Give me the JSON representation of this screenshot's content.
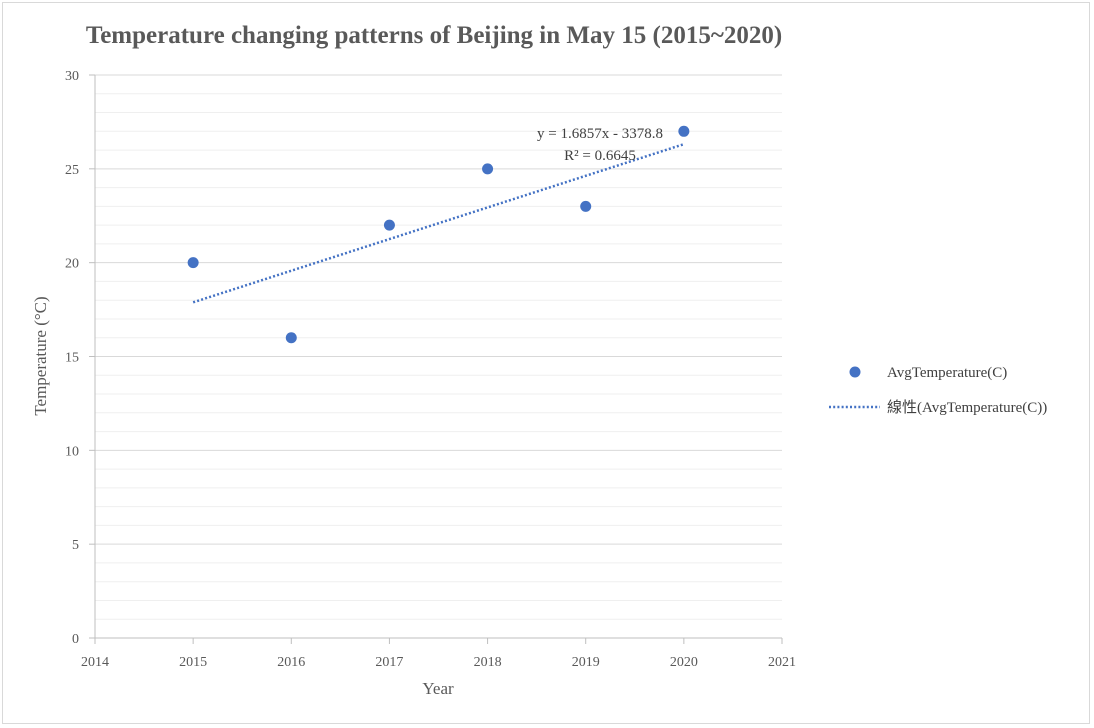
{
  "chart_data": {
    "type": "scatter",
    "title": "Temperature changing patterns of Beijing in May 15 (2015~2020)",
    "xlabel": "Year",
    "ylabel": "Temperature (°C)",
    "xlim": [
      2014,
      2021
    ],
    "ylim": [
      0,
      30
    ],
    "x_ticks": [
      2014,
      2015,
      2016,
      2017,
      2018,
      2019,
      2020,
      2021
    ],
    "y_ticks": [
      0,
      5,
      10,
      15,
      20,
      25,
      30
    ],
    "grid": true,
    "legend_position": "right",
    "series": [
      {
        "name": "AvgTemperature(C)",
        "color": "#4472c4",
        "x": [
          2015,
          2016,
          2017,
          2018,
          2019,
          2020
        ],
        "y": [
          20,
          16,
          22,
          25,
          23,
          27
        ]
      }
    ],
    "trendline": {
      "name": "線性(AvgTemperature(C))",
      "type": "linear",
      "style": "dotted",
      "color": "#4472c4",
      "slope": 1.6857,
      "intercept": -3378.8,
      "x_range": [
        2015,
        2020
      ],
      "equation_label": "y = 1.6857x - 3378.8",
      "r2_label": "R² = 0.6645"
    }
  }
}
